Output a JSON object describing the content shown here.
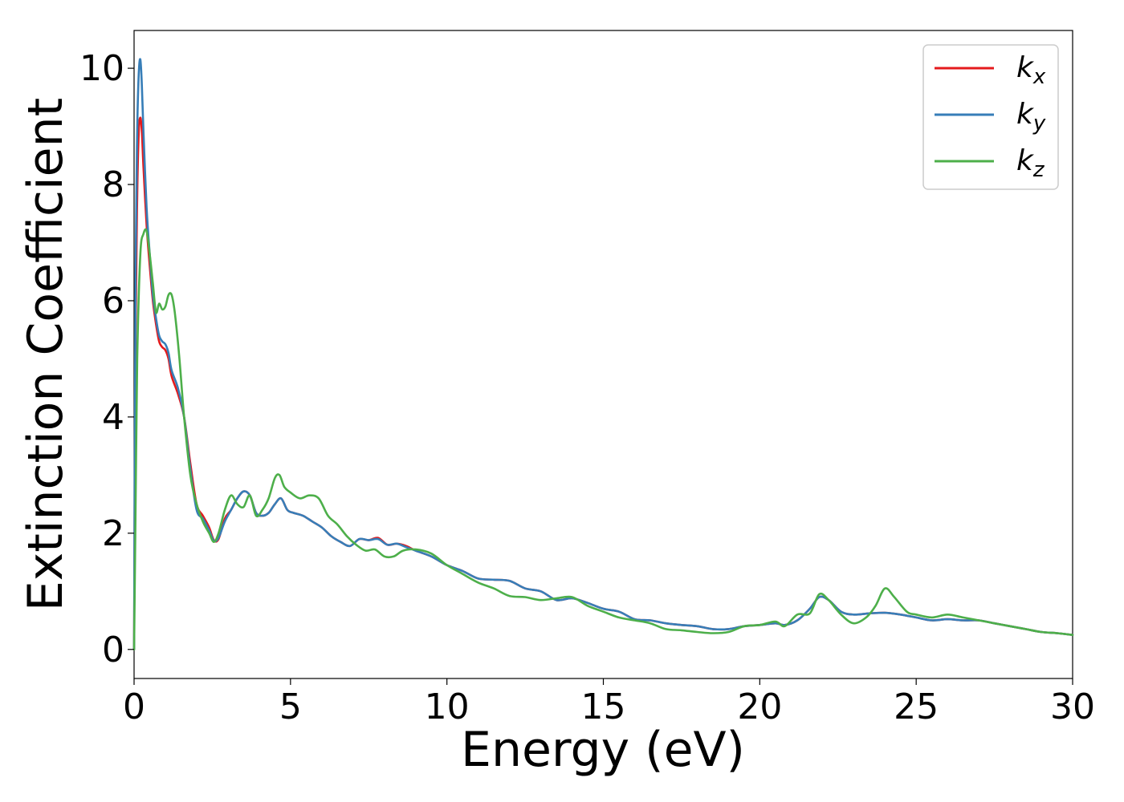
{
  "chart_data": {
    "type": "line",
    "title": "",
    "xlabel": "Energy (eV)",
    "ylabel": "Extinction Coefficient",
    "xlim": [
      0,
      30
    ],
    "ylim": [
      -0.5,
      10.65
    ],
    "xticks": [
      "0",
      "5",
      "10",
      "15",
      "20",
      "25",
      "30"
    ],
    "yticks": [
      "0",
      "2",
      "4",
      "6",
      "8",
      "10"
    ],
    "grid": false,
    "legend_position": "top-right",
    "series": [
      {
        "name": "kx",
        "label_main": "k",
        "label_sub": "x",
        "color": "#e41a1c",
        "x": [
          0,
          0.05,
          0.1,
          0.15,
          0.2,
          0.25,
          0.3,
          0.4,
          0.5,
          0.6,
          0.7,
          0.8,
          0.9,
          1.0,
          1.1,
          1.2,
          1.4,
          1.6,
          1.8,
          2.0,
          2.2,
          2.4,
          2.55,
          2.7,
          2.9,
          3.1,
          3.3,
          3.5,
          3.7,
          3.9,
          4.1,
          4.3,
          4.5,
          4.7,
          4.9,
          5.1,
          5.4,
          5.7,
          6.0,
          6.3,
          6.6,
          6.9,
          7.2,
          7.5,
          7.8,
          8.1,
          8.4,
          8.7,
          9.0,
          9.5,
          10.0,
          10.5,
          11.0,
          11.5,
          12.0,
          12.5,
          13.0,
          13.5,
          14.0,
          14.5,
          15.0,
          15.5,
          16.0,
          16.5,
          17.0,
          17.5,
          18.0,
          18.5,
          19.0,
          19.5,
          20.0,
          20.5,
          20.8,
          21.2,
          21.6,
          21.9,
          22.2,
          22.6,
          23.0,
          23.5,
          24.0,
          24.5,
          25.0,
          25.5,
          26.0,
          26.5,
          27.0,
          27.5,
          28.0,
          28.5,
          29.0,
          29.5,
          30.0
        ],
        "y": [
          0,
          5.5,
          7.8,
          8.9,
          9.15,
          8.9,
          8.3,
          7.3,
          6.6,
          6.0,
          5.6,
          5.3,
          5.2,
          5.15,
          5.0,
          4.7,
          4.4,
          4.0,
          3.2,
          2.5,
          2.3,
          2.1,
          1.88,
          1.9,
          2.25,
          2.4,
          2.6,
          2.72,
          2.65,
          2.35,
          2.3,
          2.35,
          2.5,
          2.6,
          2.4,
          2.35,
          2.3,
          2.2,
          2.1,
          1.95,
          1.85,
          1.78,
          1.9,
          1.88,
          1.92,
          1.8,
          1.82,
          1.78,
          1.7,
          1.6,
          1.45,
          1.35,
          1.22,
          1.2,
          1.18,
          1.05,
          1.0,
          0.85,
          0.88,
          0.8,
          0.7,
          0.65,
          0.52,
          0.5,
          0.45,
          0.42,
          0.4,
          0.35,
          0.35,
          0.4,
          0.42,
          0.45,
          0.42,
          0.5,
          0.7,
          0.9,
          0.85,
          0.65,
          0.6,
          0.62,
          0.63,
          0.6,
          0.55,
          0.5,
          0.52,
          0.5,
          0.5,
          0.45,
          0.4,
          0.35,
          0.3,
          0.28,
          0.25
        ]
      },
      {
        "name": "ky",
        "label_main": "k",
        "label_sub": "y",
        "color": "#377eb8",
        "x": [
          0,
          0.05,
          0.1,
          0.15,
          0.2,
          0.25,
          0.3,
          0.4,
          0.5,
          0.6,
          0.7,
          0.8,
          0.9,
          1.0,
          1.1,
          1.2,
          1.4,
          1.6,
          1.8,
          2.0,
          2.2,
          2.4,
          2.55,
          2.7,
          2.9,
          3.1,
          3.3,
          3.5,
          3.7,
          3.9,
          4.1,
          4.3,
          4.5,
          4.7,
          4.9,
          5.1,
          5.4,
          5.7,
          6.0,
          6.3,
          6.6,
          6.9,
          7.2,
          7.5,
          7.8,
          8.1,
          8.4,
          8.7,
          9.0,
          9.5,
          10.0,
          10.5,
          11.0,
          11.5,
          12.0,
          12.5,
          13.0,
          13.5,
          14.0,
          14.5,
          15.0,
          15.5,
          16.0,
          16.5,
          17.0,
          17.5,
          18.0,
          18.5,
          19.0,
          19.5,
          20.0,
          20.5,
          20.8,
          21.2,
          21.6,
          21.9,
          22.2,
          22.6,
          23.0,
          23.5,
          24.0,
          24.5,
          25.0,
          25.5,
          26.0,
          26.5,
          27.0,
          27.5,
          28.0,
          28.5,
          29.0,
          29.5,
          30.0
        ],
        "y": [
          0,
          6.5,
          8.9,
          9.9,
          10.15,
          9.7,
          8.9,
          7.6,
          6.8,
          6.1,
          5.7,
          5.4,
          5.3,
          5.25,
          5.1,
          4.8,
          4.5,
          4.0,
          3.1,
          2.4,
          2.25,
          2.05,
          1.87,
          1.92,
          2.2,
          2.4,
          2.6,
          2.72,
          2.65,
          2.35,
          2.3,
          2.35,
          2.5,
          2.6,
          2.4,
          2.35,
          2.3,
          2.2,
          2.1,
          1.95,
          1.85,
          1.78,
          1.9,
          1.88,
          1.9,
          1.8,
          1.82,
          1.76,
          1.7,
          1.6,
          1.45,
          1.35,
          1.22,
          1.2,
          1.18,
          1.05,
          1.0,
          0.85,
          0.88,
          0.8,
          0.7,
          0.65,
          0.52,
          0.5,
          0.45,
          0.42,
          0.4,
          0.35,
          0.35,
          0.4,
          0.42,
          0.45,
          0.42,
          0.5,
          0.7,
          0.9,
          0.85,
          0.65,
          0.6,
          0.62,
          0.63,
          0.6,
          0.55,
          0.5,
          0.52,
          0.5,
          0.5,
          0.45,
          0.4,
          0.35,
          0.3,
          0.28,
          0.25
        ]
      },
      {
        "name": "kz",
        "label_main": "k",
        "label_sub": "z",
        "color": "#4daf4a",
        "x": [
          0,
          0.05,
          0.1,
          0.2,
          0.3,
          0.4,
          0.5,
          0.6,
          0.7,
          0.8,
          0.9,
          1.0,
          1.1,
          1.2,
          1.3,
          1.45,
          1.6,
          1.8,
          2.0,
          2.2,
          2.4,
          2.55,
          2.7,
          2.9,
          3.1,
          3.3,
          3.5,
          3.7,
          3.9,
          4.1,
          4.3,
          4.5,
          4.65,
          4.8,
          5.0,
          5.3,
          5.6,
          5.9,
          6.2,
          6.5,
          6.8,
          7.1,
          7.4,
          7.7,
          8.0,
          8.3,
          8.6,
          9.0,
          9.5,
          10.0,
          10.5,
          11.0,
          11.5,
          12.0,
          12.5,
          13.0,
          13.5,
          14.0,
          14.5,
          15.0,
          15.5,
          16.0,
          16.5,
          17.0,
          17.5,
          18.0,
          18.5,
          19.0,
          19.5,
          20.0,
          20.5,
          20.8,
          21.2,
          21.6,
          21.9,
          22.2,
          22.6,
          23.0,
          23.4,
          23.7,
          24.0,
          24.3,
          24.7,
          25.0,
          25.5,
          26.0,
          26.5,
          27.0,
          27.5,
          28.0,
          28.5,
          29.0,
          29.5,
          30.0
        ],
        "y": [
          0,
          2.5,
          5.0,
          6.8,
          7.15,
          7.2,
          6.8,
          6.3,
          5.8,
          5.95,
          5.85,
          5.9,
          6.1,
          6.1,
          5.8,
          5.0,
          4.0,
          3.0,
          2.5,
          2.2,
          2.0,
          1.85,
          2.0,
          2.4,
          2.65,
          2.5,
          2.45,
          2.65,
          2.3,
          2.4,
          2.6,
          2.95,
          3.0,
          2.8,
          2.7,
          2.6,
          2.65,
          2.6,
          2.3,
          2.15,
          1.95,
          1.8,
          1.7,
          1.72,
          1.6,
          1.6,
          1.7,
          1.72,
          1.65,
          1.45,
          1.3,
          1.15,
          1.05,
          0.92,
          0.9,
          0.85,
          0.88,
          0.9,
          0.75,
          0.65,
          0.55,
          0.5,
          0.45,
          0.35,
          0.33,
          0.3,
          0.28,
          0.3,
          0.4,
          0.42,
          0.48,
          0.4,
          0.6,
          0.62,
          0.95,
          0.85,
          0.6,
          0.45,
          0.55,
          0.75,
          1.05,
          0.9,
          0.65,
          0.6,
          0.55,
          0.6,
          0.55,
          0.5,
          0.45,
          0.4,
          0.35,
          0.3,
          0.28,
          0.25
        ]
      }
    ]
  }
}
